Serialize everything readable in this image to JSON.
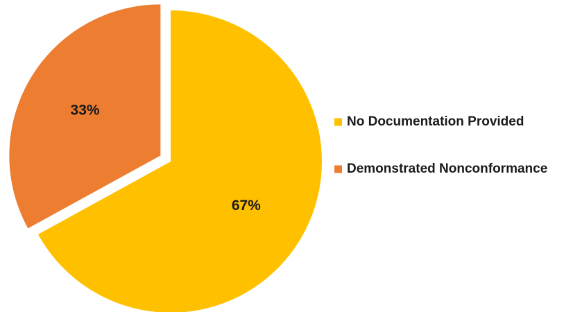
{
  "chart_data": {
    "type": "pie",
    "title": "",
    "slices": [
      {
        "label": "No Documentation Provided",
        "value": 67,
        "display": "67%",
        "color": "#FFC000"
      },
      {
        "label": "Demonstrated Nonconformance",
        "value": 33,
        "display": "33%",
        "color": "#ED7D31"
      }
    ],
    "legend": {
      "position": "right",
      "items": [
        "No Documentation Provided",
        "Demonstrated Nonconformance"
      ]
    },
    "exploded_slice": "Demonstrated Nonconformance"
  }
}
